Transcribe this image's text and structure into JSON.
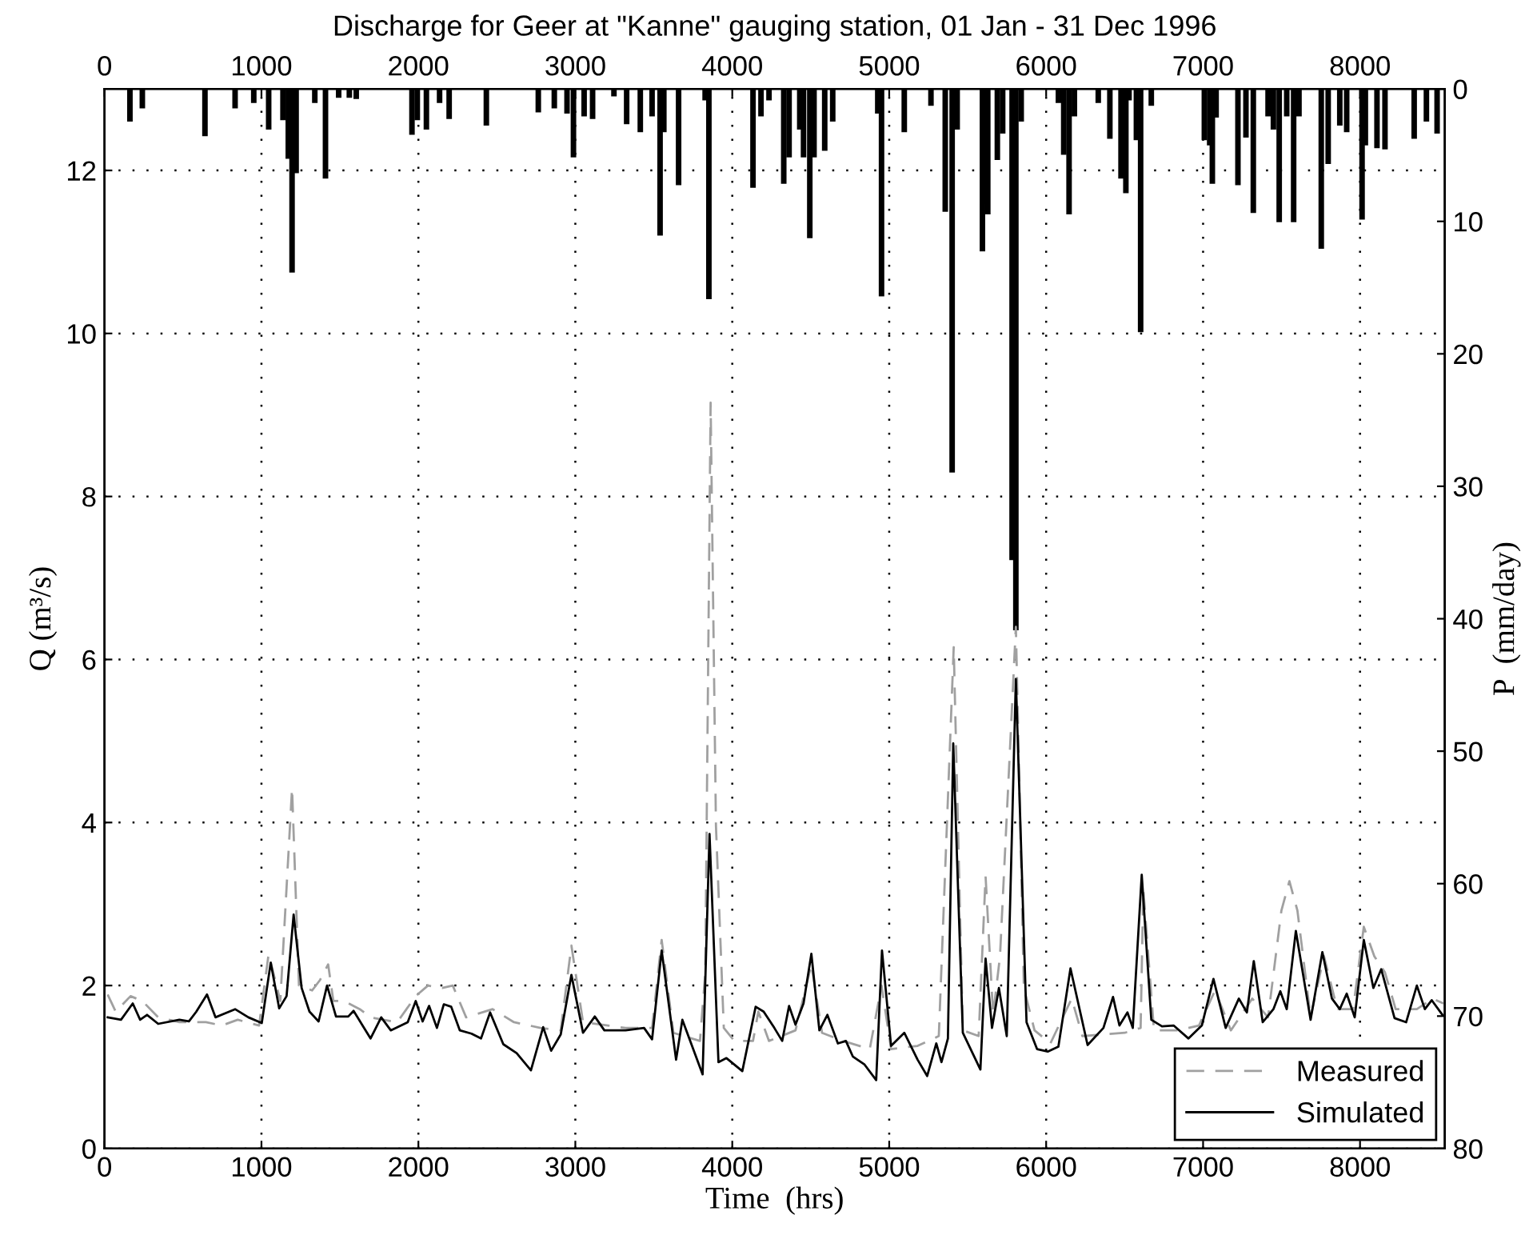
{
  "chart_data": {
    "type": "line",
    "title": "Discharge for Geer at \"Kanne\" gauging station, 01 Jan - 31 Dec 1996",
    "xlabel": "Time  (hrs)",
    "ylabel": "Q (m³/s)",
    "y2label": "P  (mm/day)",
    "xlim": [
      0,
      8540
    ],
    "xticks": [
      0,
      1000,
      2000,
      3000,
      4000,
      5000,
      6000,
      7000,
      8000
    ],
    "x2lim": [
      0,
      8540
    ],
    "x2ticks": [
      0,
      1000,
      2000,
      3000,
      4000,
      5000,
      6000,
      7000,
      8000
    ],
    "ylim": [
      0,
      13
    ],
    "yticks": [
      0,
      2,
      4,
      6,
      8,
      10,
      12
    ],
    "y2lim": [
      80,
      0
    ],
    "y2ticks": [
      0,
      10,
      20,
      30,
      40,
      50,
      60,
      70,
      80
    ],
    "grid": true,
    "legend": "bottom right",
    "series": [
      {
        "type": "bar",
        "axis": "y2",
        "color": "#000000",
        "x": [
          162,
          241,
          640,
          832,
          951,
          1046,
          1137,
          1171,
          1195,
          1221,
          1340,
          1408,
          1492,
          1560,
          1604,
          1959,
          1993,
          2051,
          2135,
          2196,
          2433,
          2764,
          2866,
          2947,
          2988,
          3056,
          3110,
          3246,
          3327,
          3414,
          3489,
          3540,
          3564,
          3658,
          3827,
          3851,
          4132,
          4183,
          4234,
          4328,
          4362,
          4430,
          4454,
          4494,
          4521,
          4589,
          4640,
          4927,
          4951,
          5096,
          5266,
          5357,
          5401,
          5433,
          5594,
          5628,
          5689,
          5723,
          5783,
          5807,
          5841,
          6078,
          6112,
          6146,
          6180,
          6332,
          6406,
          6477,
          6508,
          6528,
          6575,
          6602,
          6670,
          7008,
          7042,
          7059,
          7083,
          7222,
          7273,
          7320,
          7414,
          7448,
          7485,
          7533,
          7577,
          7611,
          7753,
          7797,
          7871,
          7915,
          8013,
          8034,
          8108,
          8159,
          8345,
          8423,
          8491
        ],
        "values": [
          2.4,
          1.4,
          3.5,
          1.4,
          1.0,
          3.0,
          2.3,
          5.2,
          13.8,
          6.3,
          1.0,
          6.7,
          0.6,
          0.6,
          0.7,
          3.4,
          2.3,
          3.0,
          1.0,
          2.2,
          2.7,
          1.7,
          1.4,
          1.8,
          5.1,
          2.0,
          2.2,
          0.5,
          2.6,
          3.2,
          2.0,
          11.0,
          3.2,
          7.2,
          0.8,
          15.8,
          7.4,
          2.0,
          0.8,
          7.1,
          5.1,
          3.0,
          5.1,
          11.2,
          5.1,
          4.6,
          2.4,
          1.8,
          15.6,
          3.2,
          1.2,
          9.2,
          28.9,
          3.0,
          12.2,
          9.4,
          5.3,
          3.3,
          35.5,
          40.8,
          2.4,
          1.0,
          4.9,
          9.4,
          2.0,
          1.0,
          3.7,
          6.7,
          7.8,
          0.8,
          3.8,
          18.3,
          1.2,
          3.8,
          4.2,
          7.1,
          2.1,
          7.2,
          3.6,
          9.3,
          2.0,
          3.0,
          10.0,
          2.0,
          10.0,
          2.0,
          12.0,
          5.6,
          2.7,
          3.2,
          9.8,
          4.2,
          4.4,
          4.5,
          3.7,
          2.4,
          3.3
        ]
      },
      {
        "name": "Measured",
        "color": "#a0a0a0",
        "line_style": "dashed",
        "x": [
          20,
          71,
          166,
          241,
          342,
          477,
          646,
          748,
          849,
          985,
          1046,
          1120,
          1195,
          1239,
          1323,
          1374,
          1425,
          1458,
          1526,
          1627,
          1695,
          1865,
          1983,
          2061,
          2152,
          2219,
          2304,
          2473,
          2609,
          2778,
          2907,
          2975,
          3049,
          3320,
          3489,
          3550,
          3625,
          3794,
          3828,
          3862,
          3896,
          3946,
          4014,
          4132,
          4166,
          4234,
          4403,
          4504,
          4572,
          4707,
          4876,
          4951,
          5012,
          5181,
          5316,
          5411,
          5469,
          5570,
          5614,
          5662,
          5706,
          5807,
          5858,
          5926,
          6027,
          6163,
          6231,
          6501,
          6602,
          6619,
          6687,
          6839,
          6974,
          7076,
          7177,
          7313,
          7414,
          7499,
          7550,
          7601,
          7685,
          7770,
          7855,
          7956,
          8024,
          8091,
          8159,
          8227,
          8362,
          8464,
          8531
        ],
        "values": [
          1.89,
          1.68,
          1.87,
          1.81,
          1.61,
          1.55,
          1.55,
          1.51,
          1.58,
          1.51,
          2.39,
          1.81,
          4.42,
          2.0,
          1.94,
          2.07,
          2.26,
          1.81,
          1.81,
          1.71,
          1.61,
          1.55,
          1.87,
          2.0,
          1.97,
          2.0,
          1.61,
          1.71,
          1.55,
          1.48,
          1.45,
          2.49,
          1.55,
          1.48,
          1.48,
          2.56,
          1.42,
          1.32,
          2.15,
          9.15,
          3.96,
          1.48,
          1.32,
          1.32,
          1.68,
          1.32,
          1.45,
          2.26,
          1.42,
          1.32,
          1.22,
          2.0,
          1.22,
          1.26,
          1.38,
          6.15,
          1.45,
          1.38,
          3.34,
          1.64,
          2.36,
          6.4,
          1.97,
          1.45,
          1.29,
          1.84,
          1.38,
          1.42,
          1.48,
          3.18,
          1.45,
          1.45,
          1.51,
          1.94,
          1.45,
          1.84,
          1.61,
          2.92,
          3.28,
          2.92,
          1.61,
          2.36,
          1.71,
          1.71,
          2.72,
          2.36,
          2.16,
          1.71,
          1.71,
          1.84,
          1.78
        ]
      },
      {
        "name": "Simulated",
        "color": "#000000",
        "line_style": "solid",
        "x": [
          20,
          105,
          180,
          227,
          271,
          342,
          477,
          538,
          585,
          653,
          707,
          832,
          917,
          1002,
          1059,
          1113,
          1160,
          1205,
          1256,
          1306,
          1364,
          1418,
          1475,
          1553,
          1587,
          1644,
          1695,
          1763,
          1824,
          1932,
          1983,
          2027,
          2068,
          2118,
          2162,
          2209,
          2264,
          2338,
          2399,
          2457,
          2541,
          2626,
          2717,
          2795,
          2846,
          2907,
          2975,
          3049,
          3124,
          3185,
          3320,
          3438,
          3489,
          3550,
          3642,
          3682,
          3811,
          3855,
          3912,
          3963,
          4064,
          4149,
          4200,
          4268,
          4318,
          4362,
          4403,
          4454,
          4504,
          4555,
          4606,
          4673,
          4724,
          4768,
          4843,
          4917,
          4954,
          5012,
          5096,
          5181,
          5242,
          5300,
          5333,
          5374,
          5408,
          5469,
          5581,
          5614,
          5655,
          5699,
          5749,
          5807,
          5875,
          5942,
          6010,
          6078,
          6155,
          6264,
          6365,
          6426,
          6467,
          6518,
          6552,
          6609,
          6670,
          6738,
          6812,
          6907,
          6992,
          7066,
          7144,
          7228,
          7279,
          7323,
          7380,
          7448,
          7492,
          7533,
          7591,
          7685,
          7760,
          7821,
          7871,
          7915,
          7966,
          8024,
          8085,
          8135,
          8220,
          8294,
          8362,
          8413,
          8457,
          8525
        ],
        "values": [
          1.61,
          1.58,
          1.78,
          1.58,
          1.64,
          1.53,
          1.58,
          1.56,
          1.68,
          1.89,
          1.61,
          1.71,
          1.61,
          1.54,
          2.28,
          1.72,
          1.87,
          2.87,
          1.97,
          1.68,
          1.56,
          2.0,
          1.62,
          1.62,
          1.69,
          1.51,
          1.35,
          1.61,
          1.45,
          1.55,
          1.81,
          1.56,
          1.75,
          1.48,
          1.77,
          1.74,
          1.45,
          1.41,
          1.35,
          1.67,
          1.28,
          1.17,
          0.96,
          1.49,
          1.2,
          1.4,
          2.13,
          1.42,
          1.62,
          1.45,
          1.45,
          1.48,
          1.34,
          2.43,
          1.09,
          1.58,
          0.91,
          3.86,
          1.06,
          1.11,
          0.95,
          1.74,
          1.68,
          1.48,
          1.32,
          1.75,
          1.52,
          1.78,
          2.39,
          1.45,
          1.64,
          1.29,
          1.32,
          1.13,
          1.03,
          0.84,
          2.43,
          1.26,
          1.42,
          1.09,
          0.89,
          1.29,
          1.06,
          1.35,
          4.97,
          1.42,
          0.97,
          2.33,
          1.48,
          1.97,
          1.38,
          5.76,
          1.55,
          1.22,
          1.19,
          1.25,
          2.21,
          1.27,
          1.48,
          1.86,
          1.51,
          1.67,
          1.48,
          3.36,
          1.58,
          1.5,
          1.51,
          1.35,
          1.51,
          2.08,
          1.48,
          1.84,
          1.67,
          2.3,
          1.55,
          1.71,
          1.93,
          1.71,
          2.67,
          1.58,
          2.41,
          1.84,
          1.71,
          1.9,
          1.61,
          2.56,
          1.97,
          2.2,
          1.6,
          1.55,
          2.0,
          1.71,
          1.82,
          1.64
        ]
      }
    ]
  }
}
